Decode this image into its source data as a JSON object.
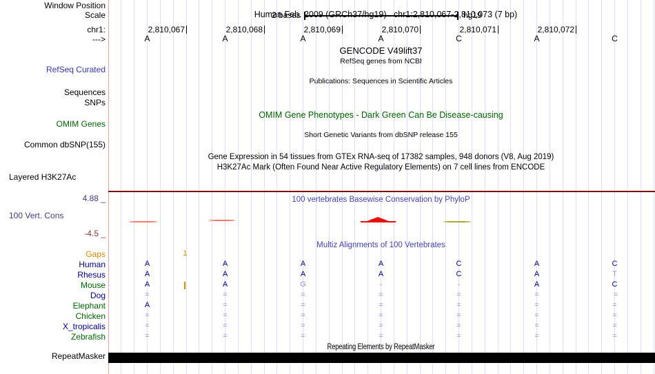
{
  "colors": {
    "grid": "#dcdcf4",
    "left_guide": "#ffa0a0",
    "navy": "#00008B",
    "green": "#006400",
    "blue_title": "#4242b0",
    "refseq_blue": "#3535b0",
    "orange": "#dd8800",
    "maroon_line": "#7a0c0c",
    "cons_max_blue": "#3c3c80",
    "cons_min_red": "#8a3535",
    "light_letter": "#9090cc",
    "wiggle_salmon": "#f87868",
    "wiggle_red": "#e81010",
    "wiggle_olive": "#a8a832",
    "black": "#000000"
  },
  "header": {
    "assembly_title": "Human Feb. 2009 (GRCh37/hg19)",
    "position_title": "chr1:2,810,067-2,810,073 (7 bp)",
    "scale_value": "2 bases",
    "scale_assembly": "hg19"
  },
  "left_labels": [
    {
      "id": "window-position",
      "text": "Window Position",
      "color": "#000000"
    },
    {
      "id": "scale",
      "text": "Scale",
      "color": "#000000"
    },
    {
      "id": "chrom",
      "text": "chr1:",
      "color": "#000000"
    },
    {
      "id": "direction",
      "text": "--->",
      "color": "#000000"
    },
    {
      "id": "refseq-curated",
      "text": "RefSeq Curated",
      "color": "#3535b0"
    },
    {
      "id": "sequences",
      "text": "Sequences",
      "color": "#000000"
    },
    {
      "id": "snps",
      "text": "SNPs",
      "color": "#000000"
    },
    {
      "id": "omim-genes",
      "text": "OMIM Genes",
      "color": "#006400"
    },
    {
      "id": "common-dbsnp",
      "text": "Common dbSNP(155)",
      "color": "#000000"
    },
    {
      "id": "layered-h3k27ac",
      "text": "Layered H3K27Ac",
      "color": "#000000"
    },
    {
      "id": "cons-max",
      "text": "4.88 _",
      "color": "#3c3c80"
    },
    {
      "id": "vert-cons",
      "text": "100 Vert. Cons",
      "color": "#3c3c80"
    },
    {
      "id": "cons-min",
      "text": "-4.5 _",
      "color": "#8a3535"
    },
    {
      "id": "repeatmasker",
      "text": "RepeatMasker",
      "color": "#000000"
    }
  ],
  "track_titles": [
    {
      "id": "gencode",
      "text": "GENCODE V49lift37",
      "color": "#000000"
    },
    {
      "id": "refseq-sub",
      "text": "RefSeq genes from NCBI",
      "color": "#000000"
    },
    {
      "id": "publications",
      "text": "Publications: Sequences in Scientific Articles",
      "color": "#000000"
    },
    {
      "id": "omim-title",
      "text": "OMIM Gene Phenotypes - Dark Green Can Be Disease-causing",
      "color": "#006400"
    },
    {
      "id": "dbsnp-sub",
      "text": "Short Genetic Variants from dbSNP release 155",
      "color": "#000000"
    },
    {
      "id": "gtex",
      "text": "Gene Expression in 54 tissues from GTEx RNA-seq of 17382 samples, 948 donors (V8, Aug 2019)",
      "color": "#000000"
    },
    {
      "id": "h3k27ac",
      "text": "H3K27Ac Mark (Often Found Near Active Regulatory Elements) on 7 cell lines from ENCODE",
      "color": "#000000"
    },
    {
      "id": "phylop",
      "text": "100 vertebrates Basewise Conservation by PhyloP",
      "color": "#4242b0"
    },
    {
      "id": "multiz",
      "text": "Multiz Alignments of 100 Vertebrates",
      "color": "#4242b0"
    },
    {
      "id": "repeat-title",
      "text": "Repeating Elements by RepeatMasker",
      "color": "#000000"
    }
  ],
  "ruler": {
    "numbers": [
      "2,810,067",
      "2,810,068",
      "2,810,069",
      "2,810,070",
      "2,810,071",
      "2,810,072"
    ],
    "bases": [
      "A",
      "A",
      "A",
      "A",
      "C",
      "A",
      "C"
    ]
  },
  "conservation": {
    "axis_max_label": "4.88 _",
    "axis_min_label": "-4.5 _",
    "segments": [
      {
        "color": "salmon-red",
        "shape": "flat-line"
      },
      {
        "color": "salmon-red",
        "shape": "flat-line"
      },
      {
        "color": "red",
        "shape": "peak"
      },
      {
        "color": "olive",
        "shape": "flat-line"
      }
    ]
  },
  "alignment": {
    "gaps_label": "Gaps",
    "gap_insert_count": "1",
    "species": [
      {
        "name": "Human",
        "label_color": "#00008B",
        "cells": [
          "A",
          "A",
          "A",
          "A",
          "C",
          "A",
          "C"
        ],
        "light": [
          0,
          0,
          0,
          0,
          0,
          0,
          0
        ]
      },
      {
        "name": "Rhesus",
        "label_color": "#00008B",
        "cells": [
          "A",
          "A",
          "A",
          "A",
          "C",
          "A",
          "T"
        ],
        "light": [
          0,
          0,
          0,
          0,
          0,
          0,
          1
        ]
      },
      {
        "name": "Mouse",
        "label_color": "#006400",
        "cells": [
          "A",
          "A",
          "G",
          "-",
          "-",
          "A",
          "C"
        ],
        "light": [
          0,
          0,
          1,
          1,
          1,
          0,
          0
        ],
        "insert_mark": true
      },
      {
        "name": "Dog",
        "label_color": "#00008B",
        "cells": [
          "=",
          "=",
          "=",
          "=",
          "=",
          "=",
          " ="
        ],
        "light": [
          1,
          1,
          1,
          1,
          1,
          1,
          1
        ]
      },
      {
        "name": "Elephant",
        "label_color": "#006400",
        "cells": [
          "A",
          "=",
          "=",
          "=",
          "=",
          "=",
          "="
        ],
        "light": [
          0,
          1,
          1,
          1,
          1,
          1,
          1
        ]
      },
      {
        "name": "Chicken",
        "label_color": "#006400",
        "cells": [
          "=",
          "=",
          "=",
          "=",
          "=",
          "=",
          "="
        ],
        "light": [
          1,
          1,
          1,
          1,
          1,
          1,
          1
        ]
      },
      {
        "name": "X_tropicalis",
        "label_color": "#00008B",
        "cells": [
          "=",
          "=",
          "=",
          "=",
          "=",
          "=",
          "="
        ],
        "light": [
          1,
          1,
          1,
          1,
          1,
          1,
          1
        ]
      },
      {
        "name": "Zebrafish",
        "label_color": "#006400",
        "cells": [
          "=",
          "=",
          "=",
          "=",
          "=",
          "=",
          "="
        ],
        "light": [
          1,
          1,
          1,
          1,
          1,
          1,
          1
        ]
      }
    ]
  }
}
